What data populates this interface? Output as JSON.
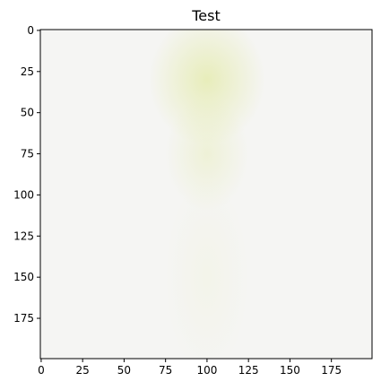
{
  "chart_data": {
    "type": "heatmap",
    "title": "Test",
    "xlabel": "",
    "ylabel": "",
    "x_range": [
      0,
      199
    ],
    "y_range": [
      0,
      199
    ],
    "y_inverted": true,
    "grid": false,
    "x_ticks": [
      0,
      25,
      50,
      75,
      100,
      125,
      150,
      175
    ],
    "y_ticks": [
      0,
      25,
      50,
      75,
      100,
      125,
      150,
      175
    ],
    "x_tick_labels": [
      "0",
      "25",
      "50",
      "75",
      "100",
      "125",
      "150",
      "175"
    ],
    "y_tick_labels": [
      "0",
      "25",
      "50",
      "75",
      "100",
      "125",
      "150",
      "175"
    ],
    "image_description_colors": {
      "background": "#f5f5f3",
      "highlight": "#e6ecb4"
    },
    "highlight_regions": [
      {
        "cx": 100,
        "cy": 30,
        "rx": 35,
        "ry": 40,
        "strength": 0.9
      },
      {
        "cx": 100,
        "cy": 75,
        "rx": 25,
        "ry": 35,
        "strength": 0.45
      },
      {
        "cx": 100,
        "cy": 150,
        "rx": 25,
        "ry": 60,
        "strength": 0.15
      }
    ]
  }
}
